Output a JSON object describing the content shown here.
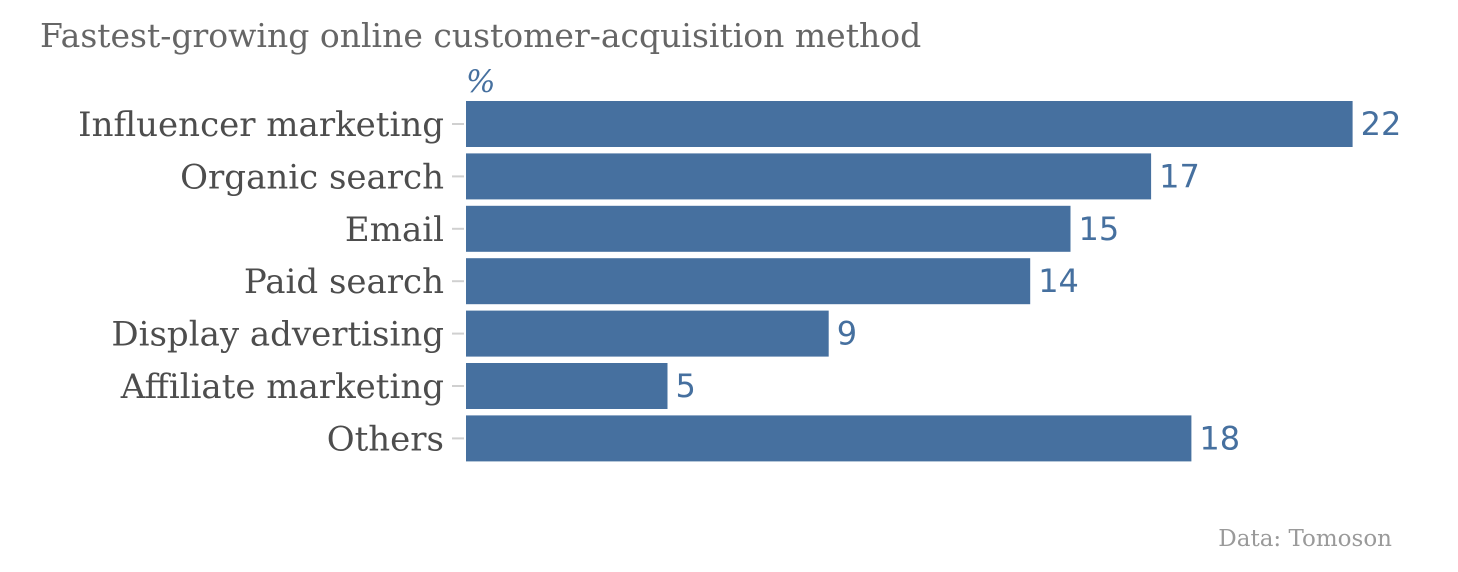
{
  "chart_data": {
    "type": "bar",
    "orientation": "horizontal",
    "title": "Fastest-growing online customer-acquisition method",
    "unit": "%",
    "categories": [
      "Influencer marketing",
      "Organic search",
      "Email",
      "Paid search",
      "Display advertising",
      "Affiliate marketing",
      "Others"
    ],
    "values": [
      22,
      17,
      15,
      14,
      9,
      5,
      18
    ],
    "xlim": [
      0,
      22
    ],
    "grid": false,
    "source": "Data: Tomoson",
    "bar_color": "#46709f"
  }
}
